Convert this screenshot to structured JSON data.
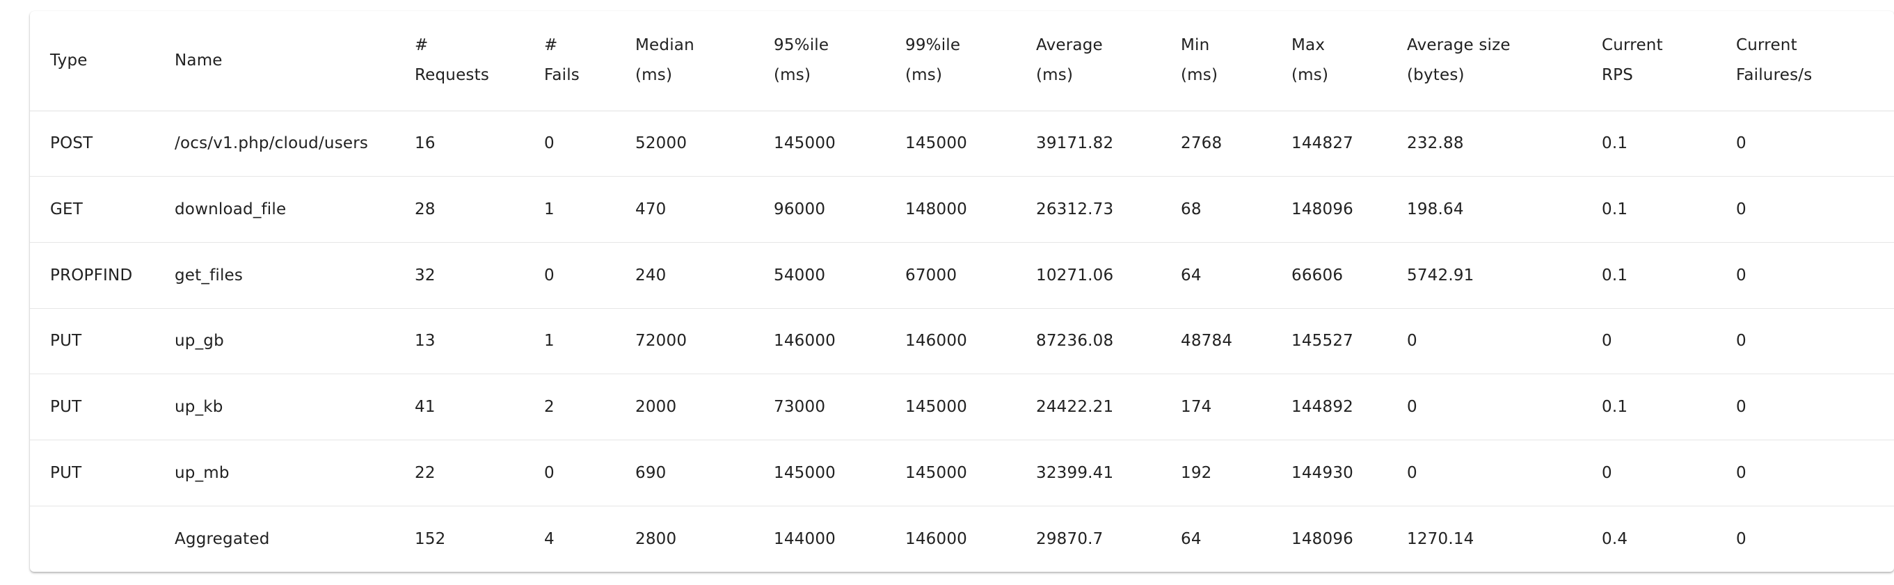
{
  "table": {
    "headers": [
      {
        "line1": "Type",
        "line2": ""
      },
      {
        "line1": "Name",
        "line2": ""
      },
      {
        "line1": "#",
        "line2": "Requests"
      },
      {
        "line1": "#",
        "line2": "Fails"
      },
      {
        "line1": "Median",
        "line2": "(ms)"
      },
      {
        "line1": "95%ile",
        "line2": "(ms)"
      },
      {
        "line1": "99%ile",
        "line2": "(ms)"
      },
      {
        "line1": "Average",
        "line2": "(ms)"
      },
      {
        "line1": "Min",
        "line2": "(ms)"
      },
      {
        "line1": "Max",
        "line2": "(ms)"
      },
      {
        "line1": "Average size",
        "line2": "(bytes)"
      },
      {
        "line1": "Current",
        "line2": "RPS"
      },
      {
        "line1": "Current",
        "line2": "Failures/s"
      }
    ],
    "rows": [
      [
        "POST",
        "/ocs/v1.php/cloud/users",
        "16",
        "0",
        "52000",
        "145000",
        "145000",
        "39171.82",
        "2768",
        "144827",
        "232.88",
        "0.1",
        "0"
      ],
      [
        "GET",
        "download_file",
        "28",
        "1",
        "470",
        "96000",
        "148000",
        "26312.73",
        "68",
        "148096",
        "198.64",
        "0.1",
        "0"
      ],
      [
        "PROPFIND",
        "get_files",
        "32",
        "0",
        "240",
        "54000",
        "67000",
        "10271.06",
        "64",
        "66606",
        "5742.91",
        "0.1",
        "0"
      ],
      [
        "PUT",
        "up_gb",
        "13",
        "1",
        "72000",
        "146000",
        "146000",
        "87236.08",
        "48784",
        "145527",
        "0",
        "0",
        "0"
      ],
      [
        "PUT",
        "up_kb",
        "41",
        "2",
        "2000",
        "73000",
        "145000",
        "24422.21",
        "174",
        "144892",
        "0",
        "0.1",
        "0"
      ],
      [
        "PUT",
        "up_mb",
        "22",
        "0",
        "690",
        "145000",
        "145000",
        "32399.41",
        "192",
        "144930",
        "0",
        "0",
        "0"
      ],
      [
        "",
        "Aggregated",
        "152",
        "4",
        "2800",
        "144000",
        "146000",
        "29870.7",
        "64",
        "148096",
        "1270.14",
        "0.4",
        "0"
      ]
    ]
  }
}
